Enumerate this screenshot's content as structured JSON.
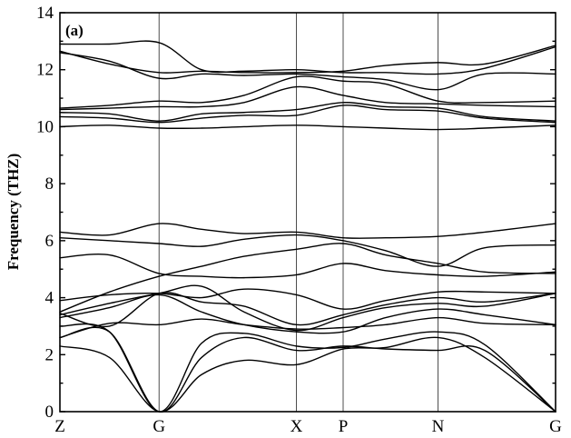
{
  "chart_data": {
    "type": "line",
    "title": "",
    "panel_label": "(a)",
    "xlabel": "",
    "ylabel": "Frequency (THZ)",
    "ylim": [
      0,
      14
    ],
    "yticks": [
      "0",
      "2",
      "4",
      "6",
      "8",
      "10",
      "12",
      "14"
    ],
    "xlim": [
      0,
      3.5
    ],
    "high_symmetry_points": [
      {
        "label": "Z",
        "x": 0
      },
      {
        "label": "G",
        "x": 0.7
      },
      {
        "label": "X",
        "x": 1.67
      },
      {
        "label": "P",
        "x": 2.0
      },
      {
        "label": "N",
        "x": 2.67
      },
      {
        "label": "G",
        "x": 3.5
      }
    ],
    "series": [
      {
        "x": [
          0,
          0.35,
          0.7,
          1.0,
          1.3,
          1.67,
          2.0,
          2.3,
          2.67,
          3.0,
          3.5
        ],
        "values": [
          2.3,
          1.9,
          0.0,
          1.3,
          1.8,
          1.65,
          2.2,
          2.25,
          2.6,
          1.9,
          0.0
        ]
      },
      {
        "x": [
          0,
          0.35,
          0.7,
          1.0,
          1.3,
          1.67,
          2.0,
          2.3,
          2.67,
          3.0,
          3.5
        ],
        "values": [
          2.6,
          2.8,
          0.0,
          1.9,
          2.6,
          2.15,
          2.3,
          2.2,
          2.15,
          2.15,
          0.0
        ]
      },
      {
        "x": [
          0,
          0.35,
          0.7,
          1.0,
          1.3,
          1.67,
          2.0,
          2.3,
          2.67,
          3.0,
          3.5
        ],
        "values": [
          3.0,
          2.8,
          0.0,
          2.4,
          2.75,
          2.3,
          2.25,
          2.55,
          2.8,
          2.35,
          0.0
        ]
      },
      {
        "x": [
          0,
          0.35,
          0.7,
          1.0,
          1.3,
          1.67,
          2.0,
          2.3,
          2.67,
          3.0,
          3.5
        ],
        "values": [
          2.6,
          3.1,
          3.05,
          3.25,
          3.05,
          2.9,
          2.95,
          3.05,
          3.3,
          3.1,
          3.05
        ]
      },
      {
        "x": [
          0,
          0.35,
          0.7,
          1.0,
          1.3,
          1.67,
          2.0,
          2.3,
          2.67,
          3.0,
          3.5
        ],
        "values": [
          3.3,
          3.65,
          4.1,
          3.5,
          3.05,
          2.8,
          2.8,
          3.3,
          3.6,
          3.4,
          3.05
        ]
      },
      {
        "x": [
          0,
          0.35,
          0.7,
          1.0,
          1.3,
          1.67,
          2.0,
          2.3,
          2.67,
          3.0,
          3.5
        ],
        "values": [
          3.4,
          3.8,
          4.15,
          4.4,
          3.5,
          2.85,
          3.3,
          3.65,
          3.8,
          3.7,
          4.15
        ]
      },
      {
        "x": [
          0,
          0.35,
          0.7,
          1.0,
          1.3,
          1.67,
          2.0,
          2.3,
          2.67,
          3.0,
          3.5
        ],
        "values": [
          3.45,
          3.0,
          4.15,
          3.85,
          3.7,
          3.05,
          3.4,
          3.75,
          4.0,
          3.85,
          4.15
        ]
      },
      {
        "x": [
          0,
          0.35,
          0.7,
          1.0,
          1.3,
          1.67,
          2.0,
          2.3,
          2.67,
          3.0,
          3.5
        ],
        "values": [
          3.9,
          4.1,
          4.15,
          4.0,
          4.3,
          4.1,
          3.6,
          3.9,
          4.2,
          4.2,
          4.15
        ]
      },
      {
        "x": [
          0,
          0.35,
          0.7,
          1.0,
          1.3,
          1.67,
          2.0,
          2.3,
          2.67,
          3.0,
          3.5
        ],
        "values": [
          5.4,
          5.5,
          4.85,
          4.75,
          4.7,
          4.8,
          5.2,
          4.95,
          4.8,
          4.75,
          4.9
        ]
      },
      {
        "x": [
          0,
          0.35,
          0.7,
          1.0,
          1.3,
          1.67,
          2.0,
          2.3,
          2.67,
          3.0,
          3.5
        ],
        "values": [
          3.5,
          4.2,
          4.75,
          5.1,
          5.45,
          5.7,
          5.9,
          5.5,
          5.2,
          4.9,
          4.85
        ]
      },
      {
        "x": [
          0,
          0.35,
          0.7,
          1.0,
          1.3,
          1.67,
          2.0,
          2.3,
          2.67,
          3.0,
          3.5
        ],
        "values": [
          6.1,
          6.0,
          5.9,
          5.8,
          6.05,
          6.2,
          6.0,
          5.65,
          5.1,
          5.75,
          5.85
        ]
      },
      {
        "x": [
          0,
          0.35,
          0.7,
          1.0,
          1.3,
          1.67,
          2.0,
          2.3,
          2.67,
          3.0,
          3.5
        ],
        "values": [
          6.3,
          6.2,
          6.6,
          6.4,
          6.25,
          6.3,
          6.1,
          6.1,
          6.15,
          6.3,
          6.6
        ]
      },
      {
        "x": [
          0,
          0.35,
          0.7,
          1.0,
          1.3,
          1.67,
          2.0,
          2.3,
          2.67,
          3.0,
          3.5
        ],
        "values": [
          10.0,
          10.05,
          9.95,
          9.95,
          10.0,
          10.05,
          10.0,
          9.95,
          9.9,
          9.95,
          10.05
        ]
      },
      {
        "x": [
          0,
          0.35,
          0.7,
          1.0,
          1.3,
          1.67,
          2.0,
          2.3,
          2.67,
          3.0,
          3.5
        ],
        "values": [
          10.35,
          10.3,
          10.15,
          10.3,
          10.4,
          10.4,
          10.75,
          10.6,
          10.55,
          10.3,
          10.15
        ]
      },
      {
        "x": [
          0,
          0.35,
          0.7,
          1.0,
          1.3,
          1.67,
          2.0,
          2.3,
          2.67,
          3.0,
          3.5
        ],
        "values": [
          10.5,
          10.45,
          10.2,
          10.45,
          10.5,
          10.6,
          10.85,
          10.7,
          10.65,
          10.35,
          10.2
        ]
      },
      {
        "x": [
          0,
          0.35,
          0.7,
          1.0,
          1.3,
          1.67,
          2.0,
          2.3,
          2.67,
          3.0,
          3.5
        ],
        "values": [
          10.6,
          10.65,
          10.7,
          10.7,
          10.85,
          11.4,
          11.1,
          10.85,
          10.8,
          10.75,
          10.7
        ]
      },
      {
        "x": [
          0,
          0.35,
          0.7,
          1.0,
          1.3,
          1.67,
          2.0,
          2.3,
          2.67,
          3.0,
          3.5
        ],
        "values": [
          10.65,
          10.75,
          10.9,
          10.85,
          11.1,
          11.75,
          11.6,
          11.5,
          10.9,
          10.85,
          10.9
        ]
      },
      {
        "x": [
          0,
          0.35,
          0.7,
          1.0,
          1.3,
          1.67,
          2.0,
          2.3,
          2.67,
          3.0,
          3.5
        ],
        "values": [
          12.6,
          12.3,
          11.7,
          11.85,
          11.8,
          11.85,
          11.75,
          11.65,
          11.3,
          11.85,
          11.85
        ]
      },
      {
        "x": [
          0,
          0.35,
          0.7,
          1.0,
          1.3,
          1.67,
          2.0,
          2.3,
          2.67,
          3.0,
          3.5
        ],
        "values": [
          12.9,
          12.9,
          12.95,
          12.0,
          11.95,
          12.0,
          11.9,
          11.9,
          11.85,
          12.05,
          12.8
        ]
      },
      {
        "x": [
          0,
          0.35,
          0.7,
          1.0,
          1.3,
          1.67,
          2.0,
          2.3,
          2.67,
          3.0,
          3.5
        ],
        "values": [
          12.65,
          12.2,
          11.9,
          11.95,
          11.9,
          11.9,
          11.95,
          12.15,
          12.25,
          12.2,
          12.85
        ]
      }
    ],
    "grid": false,
    "legend": "none"
  }
}
